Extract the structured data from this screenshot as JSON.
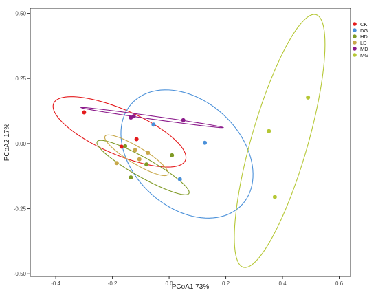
{
  "chart_data": {
    "type": "scatter",
    "title": "",
    "xlabel": "PCoA1 73%",
    "ylabel": "PCoA2 17%",
    "xlim": [
      -0.49,
      0.64
    ],
    "ylim": [
      -0.51,
      0.52
    ],
    "x_ticks": [
      -0.4,
      -0.2,
      0.0,
      0.2,
      0.4,
      0.6
    ],
    "x_tick_labels": [
      "-0.4",
      "-0.2",
      "0.0",
      "0.2",
      "0.4",
      "0.6"
    ],
    "y_ticks": [
      0.5,
      0.25,
      0.0,
      -0.25,
      -0.5
    ],
    "y_tick_labels": [
      "0.50",
      "0.25",
      "0.00",
      "-0.25",
      "-0.50"
    ],
    "grid": false,
    "legend_position": "right",
    "series": [
      {
        "name": "CK",
        "color": "#e41a1c",
        "points": [
          [
            -0.3,
            0.12
          ],
          [
            -0.115,
            0.017
          ],
          [
            -0.168,
            -0.012
          ]
        ],
        "ellipse": {
          "cx": -0.175,
          "cy": 0.045,
          "rx": 0.257,
          "ry": 0.085,
          "angle_deg": -25.7
        }
      },
      {
        "name": "DG",
        "color": "#4a90d9",
        "points": [
          [
            -0.055,
            0.073
          ],
          [
            0.126,
            0.003
          ],
          [
            0.038,
            -0.137
          ]
        ],
        "ellipse": {
          "cx": 0.063,
          "cy": -0.04,
          "rx": 0.197,
          "ry": 0.276,
          "angle_deg": 40.1
        }
      },
      {
        "name": "HD",
        "color": "#7f9a25",
        "points": [
          [
            -0.155,
            -0.01
          ],
          [
            -0.08,
            -0.08
          ],
          [
            0.01,
            -0.045
          ],
          [
            -0.135,
            -0.13
          ]
        ],
        "ellipse": {
          "cx": -0.092,
          "cy": -0.092,
          "rx": 0.19,
          "ry": 0.036,
          "angle_deg": -31.7
        }
      },
      {
        "name": "LD",
        "color": "#c8a84a",
        "points": [
          [
            -0.12,
            -0.025
          ],
          [
            -0.075,
            -0.035
          ],
          [
            -0.185,
            -0.075
          ],
          [
            -0.105,
            -0.06
          ]
        ],
        "ellipse": {
          "cx": -0.115,
          "cy": -0.045,
          "rx": 0.133,
          "ry": 0.031,
          "angle_deg": -33.7
        }
      },
      {
        "name": "MD",
        "color": "#8b1a8b",
        "points": [
          [
            -0.135,
            0.1
          ],
          [
            -0.125,
            0.105
          ],
          [
            0.05,
            0.09
          ]
        ],
        "ellipse": {
          "cx": -0.06,
          "cy": 0.1,
          "rx": 0.254,
          "ry": 0.006,
          "angle_deg": -8.7
        }
      },
      {
        "name": "MG",
        "color": "#b5c735",
        "points": [
          [
            0.49,
            0.177
          ],
          [
            0.352,
            0.048
          ],
          [
            0.373,
            -0.205
          ]
        ],
        "ellipse": {
          "cx": 0.39,
          "cy": 0.01,
          "rx": 0.502,
          "ry": 0.1,
          "angle_deg": 75.3
        }
      }
    ]
  }
}
